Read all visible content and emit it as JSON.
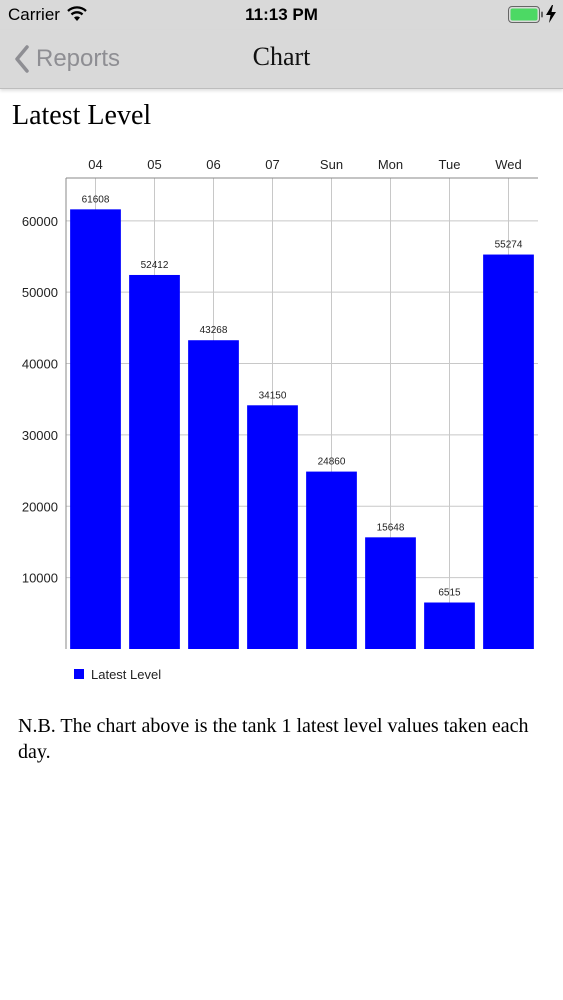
{
  "status_bar": {
    "carrier": "Carrier",
    "time": "11:13 PM",
    "battery_color": "#4cd964"
  },
  "nav": {
    "back_label": "Reports",
    "title": "Chart"
  },
  "page": {
    "heading": "Latest Level",
    "footnote": "N.B. The chart above is the tank 1 latest level values taken each day."
  },
  "chart_data": {
    "type": "bar",
    "categories": [
      "04",
      "05",
      "06",
      "07",
      "Sun",
      "Mon",
      "Tue",
      "Wed"
    ],
    "series": [
      {
        "name": "Latest Level",
        "values": [
          61608,
          52412,
          43268,
          34150,
          24860,
          15648,
          6515,
          55274
        ],
        "color": "#0000ff"
      }
    ],
    "y_ticks": [
      10000,
      20000,
      30000,
      40000,
      50000,
      60000
    ],
    "ylim": [
      0,
      66000
    ],
    "x_axis_position": "top",
    "grid": true,
    "legend_position": "bottom-left",
    "data_labels": true
  }
}
